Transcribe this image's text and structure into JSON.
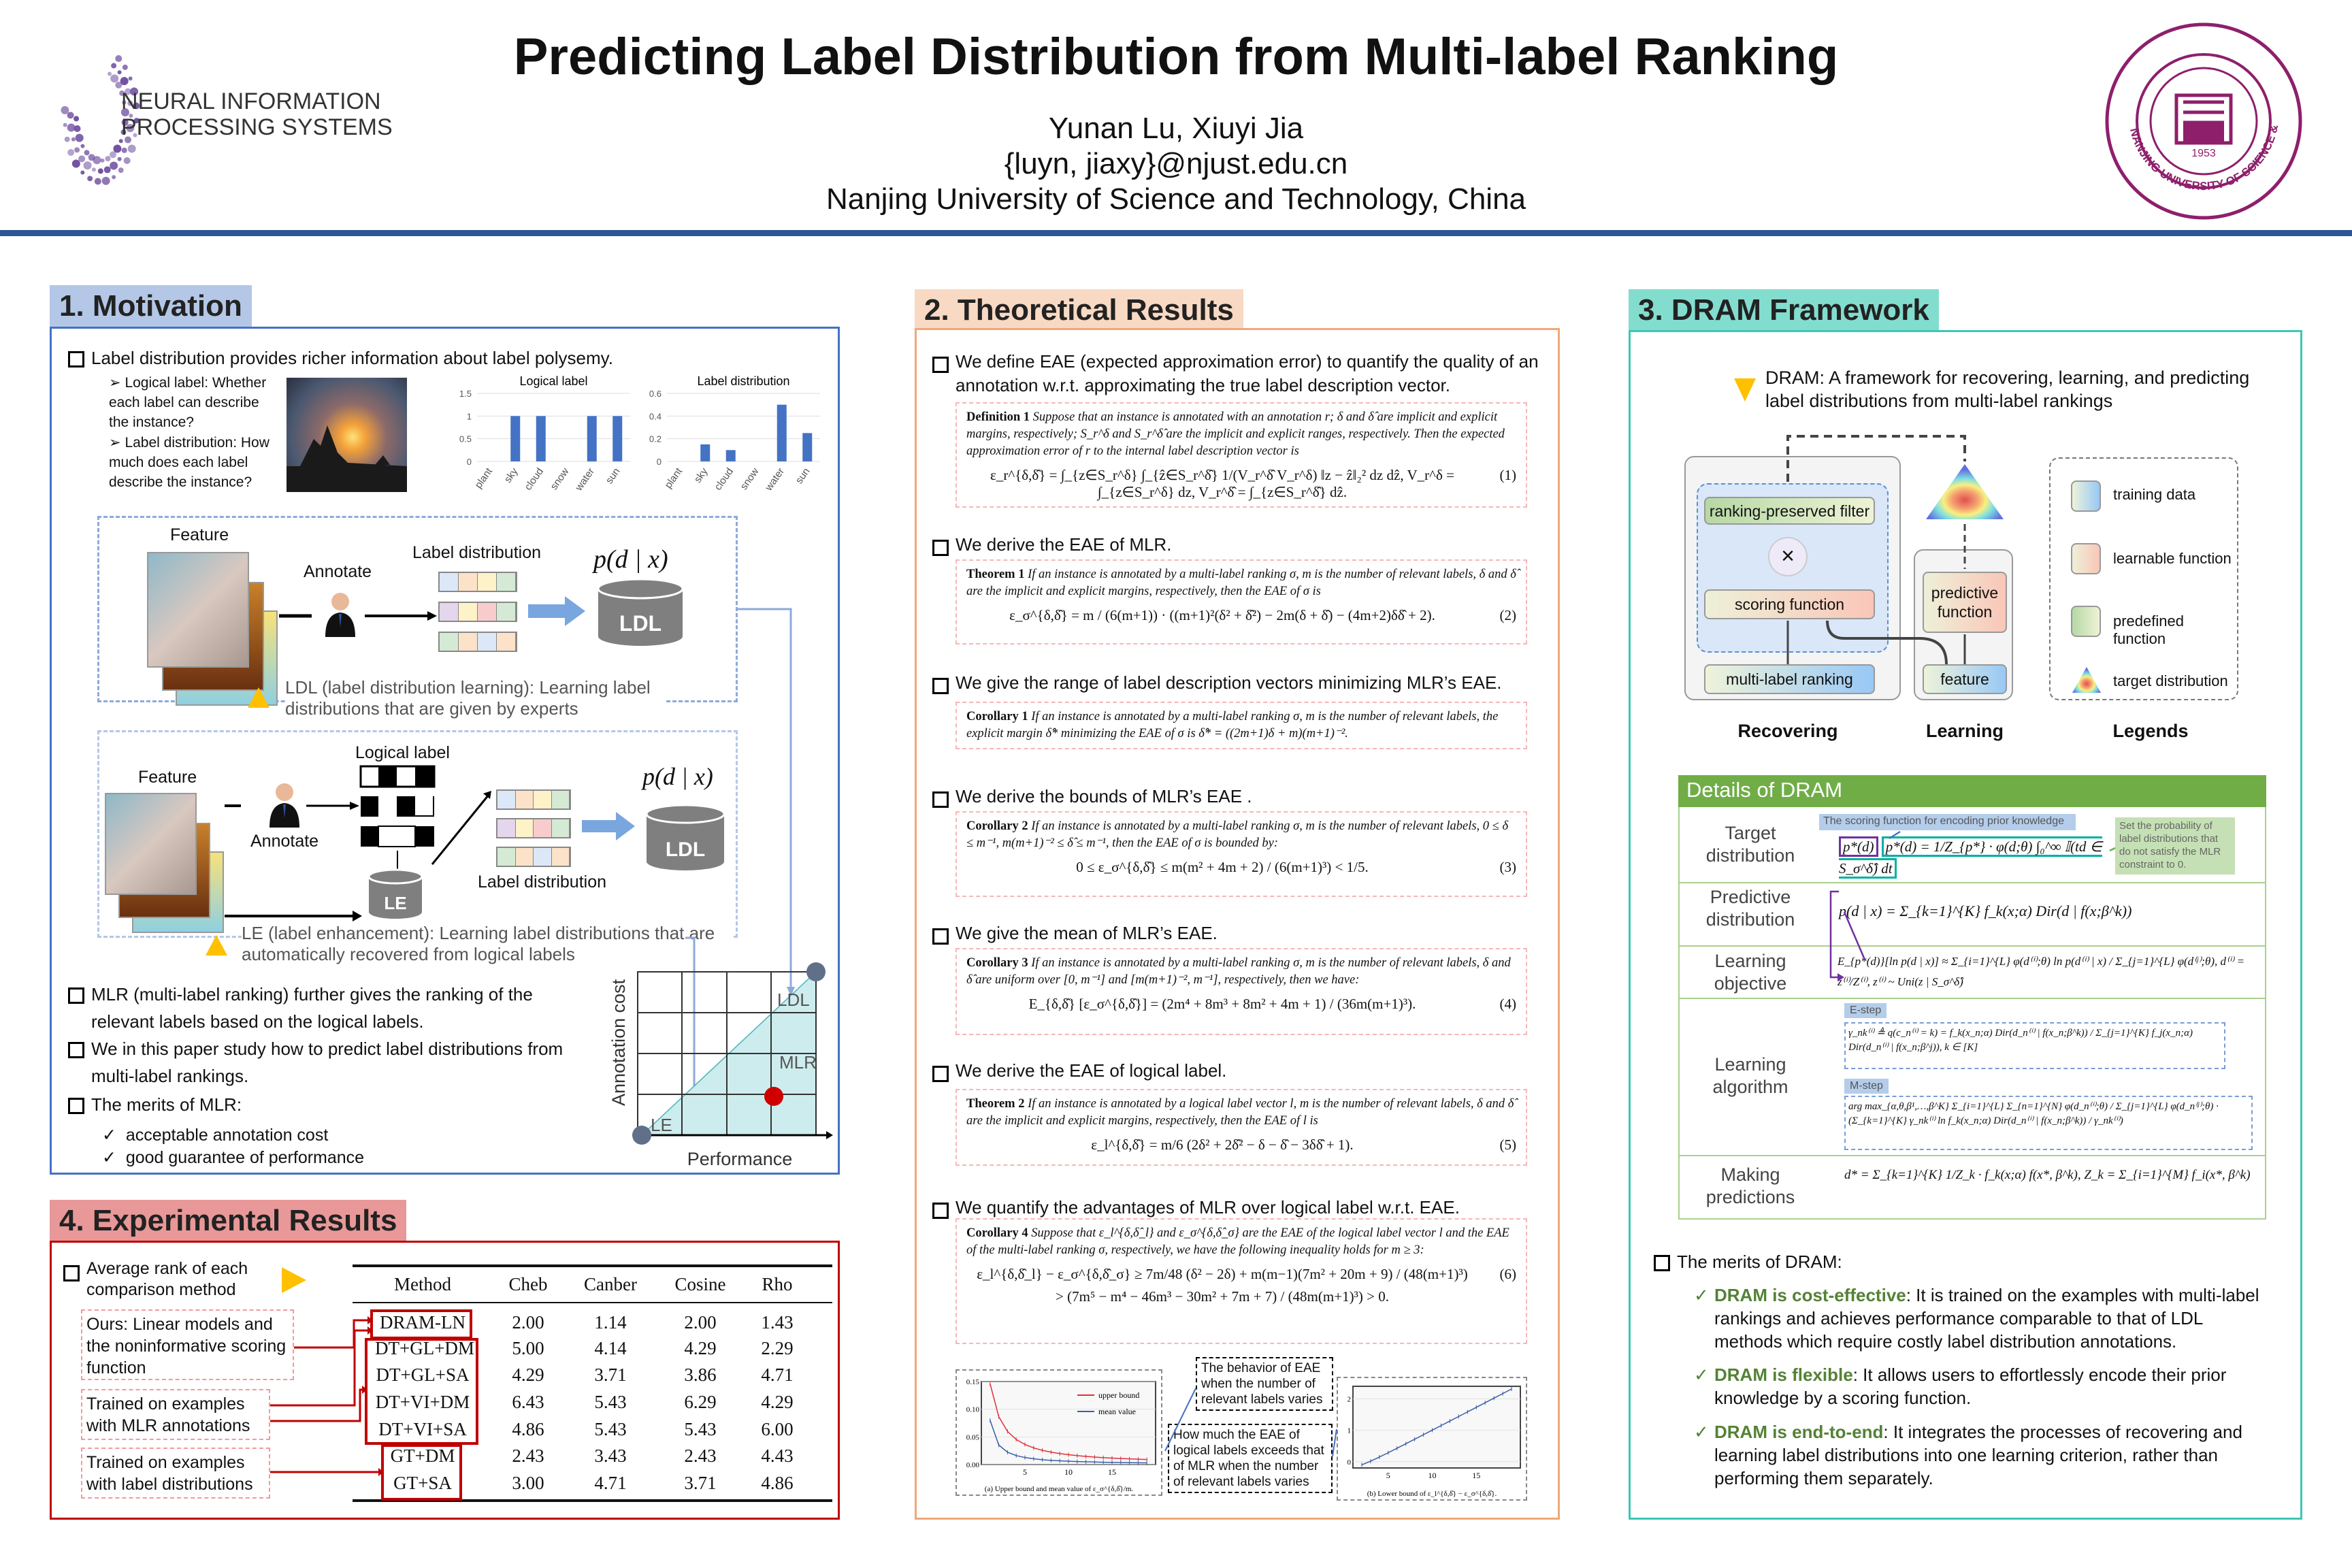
{
  "header": {
    "title": "Predicting Label Distribution from Multi-label Ranking",
    "authors": "Yunan Lu, Xiuyi Jia",
    "email": "{luyn, jiaxy}@njust.edu.cn",
    "affiliation": "Nanjing University of Science and Technology, China",
    "left_logo_line1": "NEURAL INFORMATION",
    "left_logo_line2": "PROCESSING SYSTEMS",
    "right_logo_text": "NANJING UNIVERSITY OF SCIENCE & TECHNOLOGY",
    "right_logo_year": "1953"
  },
  "colors": {
    "rule": "#2F5597",
    "s1": "#4472C4",
    "s2": "#F4B183",
    "s3": "#3CC8B4",
    "s4": "#C00000",
    "green": "#70AD47"
  },
  "motivation": {
    "heading": "1. Motivation",
    "bullet1": "Label distribution provides richer information about label polysemy.",
    "sub1": "Logical label: Whether each label can describe the instance?",
    "sub2": "Label distribution: How much does each label describe the instance?",
    "mini_charts": [
      {
        "title": "Logical label",
        "categories": [
          "plant",
          "sky",
          "cloud",
          "snow",
          "water",
          "sun"
        ],
        "values": [
          0,
          1,
          1,
          0,
          1,
          1
        ],
        "ticks": [
          "0",
          "0.5",
          "1",
          "1.5"
        ],
        "ylim": [
          0,
          1.5
        ]
      },
      {
        "title": "Label distribution",
        "categories": [
          "plant",
          "sky",
          "cloud",
          "snow",
          "water",
          "sun"
        ],
        "values": [
          0,
          0.15,
          0.1,
          0,
          0.5,
          0.25
        ],
        "ticks": [
          "0",
          "0.2",
          "0.4",
          "0.6"
        ],
        "ylim": [
          0,
          0.6
        ]
      }
    ],
    "ldl": {
      "feature": "Feature",
      "annotate": "Annotate",
      "label_distribution": "Label distribution",
      "pdx": "p(d | x)",
      "cyl": "LDL",
      "caption": "LDL (label distribution learning): Learning label distributions that are given by experts"
    },
    "le": {
      "feature": "Feature",
      "annotate": "Annotate",
      "logical_label": "Logical label",
      "label_distribution": "Label distribution",
      "pdx": "p(d | x)",
      "cyl_le": "LE",
      "cyl_ldl": "LDL",
      "caption": "LE (label enhancement): Learning label distributions that are automatically recovered from logical labels"
    },
    "bullet2": "MLR (multi-label ranking) further gives the ranking of the relevant labels based on the logical labels.",
    "bullet3": "We in this paper study how to predict label distributions from multi-label rankings.",
    "bullet4": "The merits of MLR:",
    "checks": [
      "acceptable annotation cost",
      "good guarantee of performance"
    ],
    "cost_chart": {
      "ylabel": "Annotation cost",
      "xlabel": "Performance",
      "points": [
        "LDL",
        "MLR",
        "LE"
      ]
    }
  },
  "experiments": {
    "heading": "4. Experimental Results",
    "bullet": "Average rank of each comparison method",
    "notes": [
      "Ours: Linear models and the noninformative scoring function",
      "Trained on examples with MLR annotations",
      "Trained on examples with label distributions"
    ],
    "table": {
      "columns": [
        "Method",
        "Cheb",
        "Canber",
        "Cosine",
        "Rho"
      ],
      "rows": [
        [
          "DRAM-LN",
          "2.00",
          "1.14",
          "2.00",
          "1.43"
        ],
        [
          "DT+GL+DM",
          "5.00",
          "4.14",
          "4.29",
          "2.29"
        ],
        [
          "DT+GL+SA",
          "4.29",
          "3.71",
          "3.86",
          "4.71"
        ],
        [
          "DT+VI+DM",
          "6.43",
          "5.43",
          "6.29",
          "4.29"
        ],
        [
          "DT+VI+SA",
          "4.86",
          "5.43",
          "5.43",
          "6.00"
        ],
        [
          "GT+DM",
          "2.43",
          "3.43",
          "2.43",
          "4.43"
        ],
        [
          "GT+SA",
          "3.00",
          "4.71",
          "3.71",
          "4.86"
        ]
      ]
    }
  },
  "theory": {
    "heading": "2. Theoretical Results",
    "bullets": [
      "We define EAE (expected approximation error) to quantify the quality of an annotation w.r.t. approximating the true label description vector.",
      "We derive the EAE of MLR.",
      "We give the range of label description vectors minimizing MLR’s EAE.",
      "We derive the bounds of MLR’s EAE .",
      "We give the mean of MLR’s EAE.",
      "We derive the EAE of logical label.",
      "We quantify the advantages of MLR over logical label w.r.t. EAE."
    ],
    "boxes": [
      {
        "label": "Definition 1",
        "body": "Suppose that an instance is annotated with an annotation r; δ and δ̂ are implicit and explicit margins, respectively; S_r^δ and S_r^δ̂ are the implicit and explicit ranges, respectively. Then the expected approximation error of r to the internal label description vector is",
        "formula": "ε_r^{δ,δ̂} = ∫_{z∈S_r^δ} ∫_{ẑ∈S_r^δ̂} 1/(V_r^δ̂ V_r^δ) ‖z − ẑ‖₂² dz dẑ,   V_r^δ = ∫_{z∈S_r^δ} dz,   V_r^δ̂ = ∫_{z∈S_r^δ̂} dẑ.",
        "eq": "(1)"
      },
      {
        "label": "Theorem 1",
        "body": "If an instance is annotated by a multi-label ranking σ, m is the number of relevant labels, δ and δ̂ are the implicit and explicit margins, respectively, then the EAE of σ is",
        "formula": "ε_σ^{δ,δ̂} = m / (6(m+1)) · ((m+1)²(δ² + δ̂²) − 2m(δ + δ̂) − (4m+2)δδ̂ + 2).",
        "eq": "(2)"
      },
      {
        "label": "Corollary 1",
        "body": "If an instance is annotated by a multi-label ranking σ, m is the number of relevant labels, the explicit margin δ̂* minimizing the EAE of σ is δ̂* = ((2m+1)δ + m)(m+1)⁻².",
        "formula": "",
        "eq": ""
      },
      {
        "label": "Corollary 2",
        "body": "If an instance is annotated by a multi-label ranking σ, m is the number of relevant labels, 0 ≤ δ ≤ m⁻¹, m(m+1)⁻² ≤ δ̂ ≤ m⁻¹, then the EAE of σ is bounded by:",
        "formula": "0 ≤ ε_σ^{δ,δ̂} ≤ m(m² + 4m + 2) / (6(m+1)³) < 1/5.",
        "eq": "(3)"
      },
      {
        "label": "Corollary 3",
        "body": "If an instance is annotated by a multi-label ranking σ, m is the number of relevant labels, δ and δ̂ are uniform over [0, m⁻¹] and [m(m+1)⁻², m⁻¹], respectively, then we have:",
        "formula": "E_{δ,δ̂} [ε_σ^{δ,δ̂}] = (2m⁴ + 8m³ + 8m² + 4m + 1) / (36m(m+1)³).",
        "eq": "(4)"
      },
      {
        "label": "Theorem 2",
        "body": "If an instance is annotated by a logical label vector l, m is the number of relevant labels, δ and δ̂ are the implicit and explicit margins, respectively, then the EAE of l is",
        "formula": "ε_l^{δ,δ̂} = m/6 (2δ² + 2δ̂² − δ − δ̂ − 3δδ̂ + 1).",
        "eq": "(5)"
      },
      {
        "label": "Corollary 4",
        "body": "Suppose that ε_l^{δ,δ̂_l} and ε_σ^{δ,δ̂_σ} are the EAE of the logical label vector l and the EAE of the multi-label ranking σ, respectively, we have the following inequality holds for m ≥ 3:",
        "formula": "ε_l^{δ,δ̂_l} − ε_σ^{δ,δ̂_σ} ≥ 7m/48 (δ² − 2δ) + m(m−1)(7m² + 20m + 9) / (48(m+1)³)",
        "formula2": "> (7m⁵ − m⁴ − 46m³ − 30m² + 7m + 7) / (48m(m+1)³) > 0.",
        "eq": "(6)"
      }
    ],
    "callout1": "The behavior of EAE when the number of relevant labels varies",
    "callout2": "How much the EAE of logical labels exceeds that of MLR when the number of relevant labels varies",
    "chart_data": [
      {
        "type": "line",
        "caption": "(a) Upper bound and mean value of ε_σ^{δ,δ̂}/m.",
        "x": [
          1,
          2,
          3,
          4,
          5,
          6,
          7,
          8,
          9,
          10,
          11,
          12,
          13,
          14,
          15,
          16,
          17,
          18,
          19
        ],
        "series": [
          {
            "name": "upper bound",
            "color": "#E0303A",
            "values": [
              0.146,
              0.0864,
              0.0599,
              0.0453,
              0.0363,
              0.0301,
              0.0257,
              0.0224,
              0.0198,
              0.0178,
              0.0161,
              0.0147,
              0.0135,
              0.0125,
              0.0117,
              0.0109,
              0.0103,
              0.0097,
              0.0091
            ]
          },
          {
            "name": "mean value",
            "color": "#3A5EA8",
            "values": [
              0.0799,
              0.0352,
              0.0223,
              0.0162,
              0.0127,
              0.0104,
              0.0088,
              0.0076,
              0.0067,
              0.006,
              0.0054,
              0.005,
              0.0046,
              0.0042,
              0.0039,
              0.0037,
              0.0034,
              0.0032,
              0.0031
            ]
          }
        ],
        "xticks": [
          5,
          10,
          15
        ],
        "yticks": [
          "0.00",
          "0.05",
          "0.10",
          "0.15"
        ],
        "xlim": [
          0,
          20
        ],
        "ylim": [
          0,
          0.15
        ],
        "legend": "top-right",
        "grid": true
      },
      {
        "type": "line",
        "caption": "(b) Lower bound of ε_l^{δ,δ̂} − ε_σ^{δ,δ̂}.",
        "x": [
          2,
          3,
          4,
          5,
          6,
          7,
          8,
          9,
          10,
          11,
          12,
          13,
          14,
          15,
          16,
          17,
          18,
          19
        ],
        "series": [
          {
            "color": "#3A5EA8",
            "values": [
              -0.1,
              0.015,
              0.147,
              0.285,
              0.427,
              0.57,
              0.714,
              0.859,
              1.003,
              1.149,
              1.294,
              1.439,
              1.585,
              1.73,
              1.876,
              2.022,
              2.167,
              2.313
            ]
          }
        ],
        "xticks": [
          5,
          10,
          15
        ],
        "yticks": [
          "0",
          "1",
          "2"
        ],
        "xlim": [
          1,
          20
        ],
        "ylim": [
          -0.2,
          2.4
        ],
        "grid": true
      }
    ]
  },
  "framework": {
    "heading": "3. DRAM Framework",
    "intro": "DRAM: A framework  for recovering, learning, and predicting label distributions from multi-label rankings",
    "nodes": {
      "filter": "ranking-preserved filter",
      "times": "×",
      "scoring": "scoring function",
      "mlr": "multi-label ranking",
      "predictive": "predictive function",
      "feature": "feature"
    },
    "group_labels": [
      "Recovering",
      "Learning",
      "Legends"
    ],
    "legends": [
      "training data",
      "learnable function",
      "predefined function",
      "target distribution"
    ],
    "details": {
      "heading": "Details of DRAM",
      "tag_scoring": "The scoring function for encoding prior knowledge",
      "tag_constraint": "Set the probability of label distributions that do not satisfy the MLR constraint to 0.",
      "rows": [
        {
          "label": "Target distribution",
          "formula": "p*(d) = 1/Z_{p*} · φ(d;θ) ∫₀^∞ 𝕀(td ∈ S_σ^δ̂) dt"
        },
        {
          "label": "Predictive distribution",
          "formula": "p(d | x) = Σ_{k=1}^{K} f_k(x;α) Dir(d | f(x;β^k))"
        },
        {
          "label": "Learning objective",
          "formula": "E_{p*(d)}[ln p(d | x)] ≈ Σ_{i=1}^{L} φ(d⁽ⁱ⁾;θ) ln p(d⁽ⁱ⁾ | x) / Σ_{j=1}^{L} φ(d⁽ʲ⁾;θ),   d⁽ⁱ⁾ = z⁽ⁱ⁾/Z⁽ⁱ⁾,   z⁽ⁱ⁾ ~ Uni(z | S_σ^δ̂)"
        },
        {
          "label": "Learning algorithm",
          "estep": "E-step",
          "mstep": "M-step",
          "formula_e": "γ_nk⁽ⁱ⁾ ≜ q(c_n⁽ⁱ⁾ = k) = f_k(x_n;α) Dir(d_n⁽ⁱ⁾ | f(x_n;β^k)) / Σ_{j=1}^{K} f_j(x_n;α) Dir(d_n⁽ⁱ⁾ | f(x_n;β^j)),   k ∈ [K]",
          "formula_m": "arg max_{α,θ,β¹,…,β^K} Σ_{i=1}^{L} Σ_{n=1}^{N} φ(d_n⁽ⁱ⁾;θ) / Σ_{j=1}^{L} φ(d_n⁽ʲ⁾;θ) · (Σ_{k=1}^{K} γ_nk⁽ⁱ⁾ ln f_k(x_n;α) Dir(d_n⁽ⁱ⁾ | f(x_n;β^k)) / γ_nk⁽ⁱ⁾)"
        },
        {
          "label": "Making predictions",
          "formula": "d* = Σ_{k=1}^{K} 1/Z_k · f_k(x;α) f(x*, β^k),   Z_k = Σ_{i=1}^{M} f_i(x*, β^k)"
        }
      ]
    },
    "merits_title": "The merits of DRAM:",
    "merits": [
      {
        "head": "DRAM is cost-effective",
        "body": ": It is trained on the examples with multi-label rankings and achieves performance comparable to that of LDL methods which require costly label distribution annotations."
      },
      {
        "head": "DRAM is flexible",
        "body": ": It allows  users to effortlessly  encode their prior knowledge by a scoring function."
      },
      {
        "head": "DRAM is end-to-end",
        "body": ": It integrates the processes of recovering and learning label distributions into one learning criterion, rather than performing them separately."
      }
    ]
  }
}
